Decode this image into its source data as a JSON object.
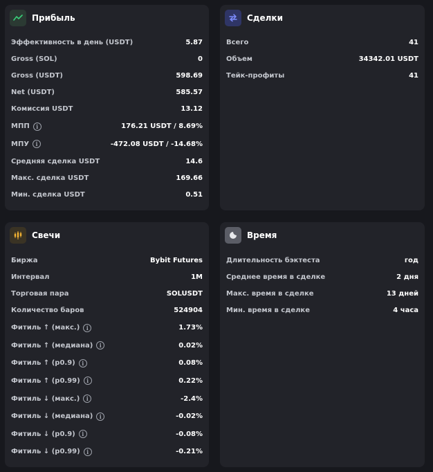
{
  "profit": {
    "title": "Прибыль",
    "icon": "trend-line-icon",
    "rows": [
      {
        "label": "Эффективность в день (USDT)",
        "value": "5.87"
      },
      {
        "label": "Gross (SOL)",
        "value": "0"
      },
      {
        "label": "Gross (USDT)",
        "value": "598.69"
      },
      {
        "label": "Net (USDT)",
        "value": "585.57"
      },
      {
        "label": "Комиссия USDT",
        "value": "13.12"
      },
      {
        "label": "МПП",
        "value": "176.21 USDT / 8.69%",
        "info": true
      },
      {
        "label": "МПУ",
        "value": "-472.08 USDT / -14.68%",
        "info": true
      },
      {
        "label": "Средняя сделка USDT",
        "value": "14.6"
      },
      {
        "label": "Макс. сделка USDT",
        "value": "169.66"
      },
      {
        "label": "Мин. сделка USDT",
        "value": "0.51"
      }
    ]
  },
  "deals": {
    "title": "Сделки",
    "icon": "swap-arrows-icon",
    "rows": [
      {
        "label": "Всего",
        "value": "41"
      },
      {
        "label": "Объем",
        "value": "34342.01 USDT"
      },
      {
        "label": "Тейк-профиты",
        "value": "41"
      }
    ]
  },
  "candles": {
    "title": "Свечи",
    "icon": "candlestick-icon",
    "rows": [
      {
        "label": "Биржа",
        "value": "Bybit Futures"
      },
      {
        "label": "Интервал",
        "value": "1M"
      },
      {
        "label": "Торговая пара",
        "value": "SOLUSDT"
      },
      {
        "label": "Количество баров",
        "value": "524904"
      },
      {
        "label": "Фитиль ↑ (макс.)",
        "value": "1.73%",
        "info": true
      },
      {
        "label": "Фитиль ↑ (медиана)",
        "value": "0.02%",
        "info": true
      },
      {
        "label": "Фитиль ↑ (p0.9)",
        "value": "0.08%",
        "info": true
      },
      {
        "label": "Фитиль ↑ (p0.99)",
        "value": "0.22%",
        "info": true
      },
      {
        "label": "Фитиль ↓ (макс.)",
        "value": "-2.4%",
        "info": true
      },
      {
        "label": "Фитиль ↓ (медиана)",
        "value": "-0.02%",
        "info": true
      },
      {
        "label": "Фитиль ↓ (p0.9)",
        "value": "-0.08%",
        "info": true
      },
      {
        "label": "Фитиль ↓ (p0.99)",
        "value": "-0.21%",
        "info": true
      }
    ]
  },
  "time": {
    "title": "Время",
    "icon": "clock-icon",
    "rows": [
      {
        "label": "Длительность бэктеста",
        "value": "год"
      },
      {
        "label": "Среднее время в сделке",
        "value": "2 дня"
      },
      {
        "label": "Макс. время в сделке",
        "value": "13 дней"
      },
      {
        "label": "Мин. время в сделке",
        "value": "4 часа"
      }
    ]
  },
  "colors": {
    "background": "#17181d",
    "card": "#222329",
    "profit_icon_bg": "#2b3a33",
    "deals_icon_bg": "#2f3566",
    "candles_icon_bg": "#3a3324",
    "time_icon_bg": "#5b5d66"
  }
}
